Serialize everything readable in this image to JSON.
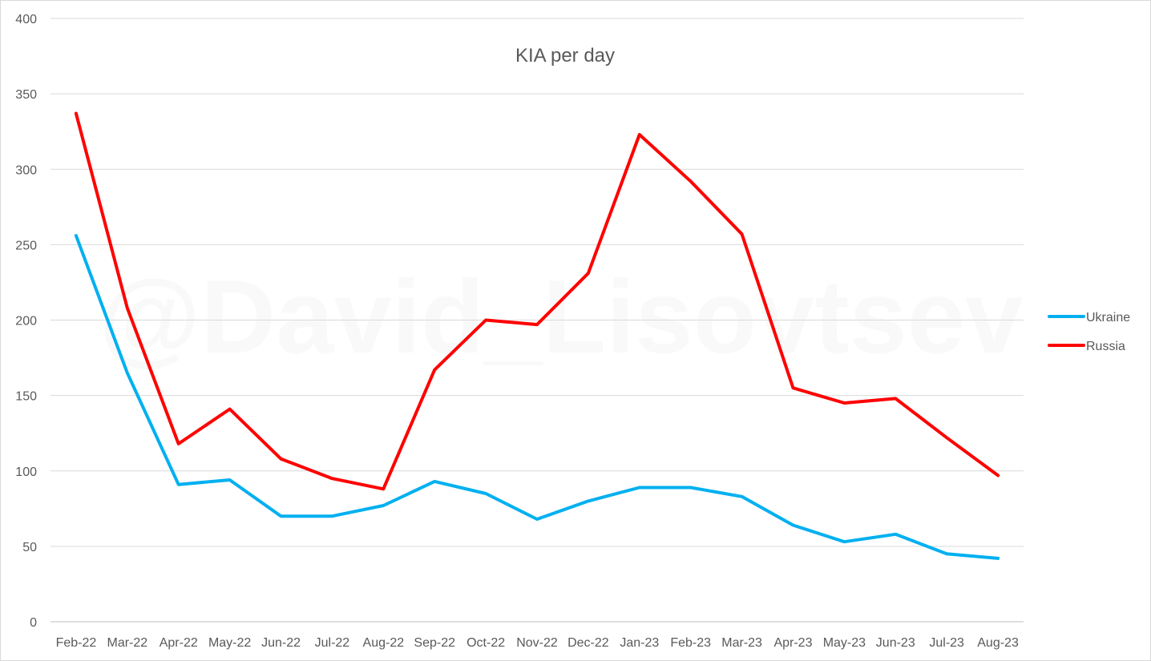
{
  "watermark": "@David_Lisovtsev",
  "chart_data": {
    "type": "line",
    "title": "KIA per day",
    "xlabel": "",
    "ylabel": "",
    "ylim": [
      0,
      400
    ],
    "yticks": [
      0,
      50,
      100,
      150,
      200,
      250,
      300,
      350,
      400
    ],
    "grid": true,
    "legend_position": "right",
    "categories": [
      "Feb-22",
      "Mar-22",
      "Apr-22",
      "May-22",
      "Jun-22",
      "Jul-22",
      "Aug-22",
      "Sep-22",
      "Oct-22",
      "Nov-22",
      "Dec-22",
      "Jan-23",
      "Feb-23",
      "Mar-23",
      "Apr-23",
      "May-23",
      "Jun-23",
      "Jul-23",
      "Aug-23"
    ],
    "series": [
      {
        "name": "Ukraine",
        "color": "#00b0f0",
        "values": [
          256,
          165,
          91,
          94,
          70,
          70,
          77,
          93,
          85,
          68,
          80,
          89,
          89,
          83,
          64,
          53,
          58,
          45,
          42
        ]
      },
      {
        "name": "Russia",
        "color": "#ff0000",
        "values": [
          337,
          208,
          118,
          141,
          108,
          95,
          88,
          167,
          200,
          197,
          231,
          323,
          292,
          257,
          155,
          145,
          148,
          122,
          97
        ]
      }
    ]
  }
}
